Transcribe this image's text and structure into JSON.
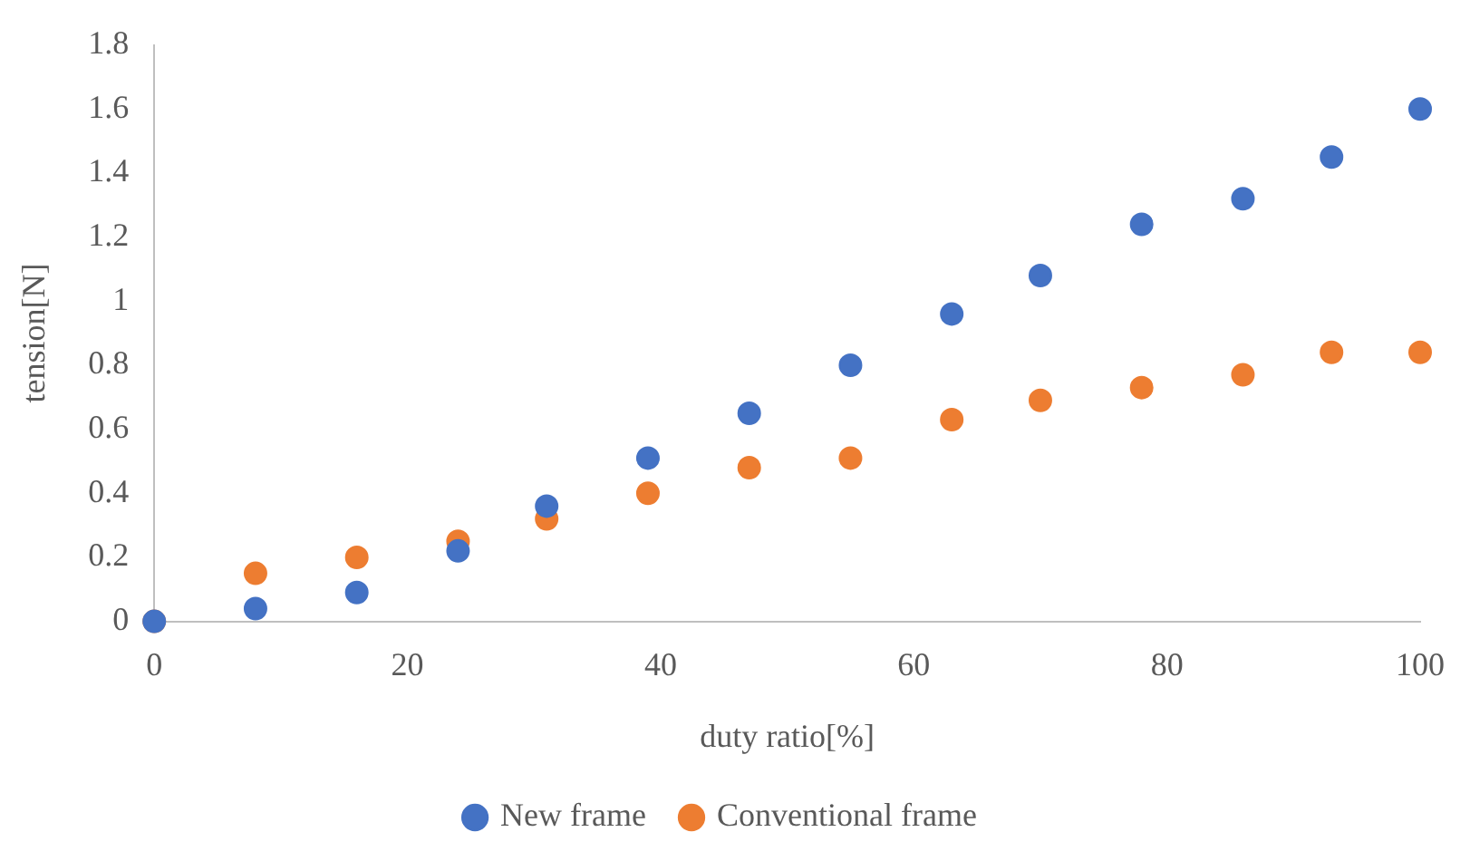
{
  "chart_data": {
    "type": "scatter",
    "xlabel": "duty ratio[%]",
    "ylabel": "tension[N]",
    "x": [
      0,
      8,
      16,
      24,
      31,
      39,
      47,
      55,
      63,
      70,
      78,
      86,
      93,
      100
    ],
    "series": [
      {
        "name": "New frame",
        "color": "#4472c4",
        "values": [
          0,
          0.04,
          0.09,
          0.22,
          0.36,
          0.51,
          0.65,
          0.8,
          0.96,
          1.08,
          1.24,
          1.32,
          1.45,
          1.6
        ]
      },
      {
        "name": "Conventional frame",
        "color": "#ed7d31",
        "values": [
          0,
          0.15,
          0.2,
          0.25,
          0.32,
          0.4,
          0.48,
          0.51,
          0.63,
          0.69,
          0.73,
          0.77,
          0.84,
          0.84
        ]
      }
    ],
    "xlim": [
      0,
      100
    ],
    "xticks": [
      0,
      20,
      40,
      60,
      80,
      100
    ],
    "ylim": [
      0,
      1.8
    ],
    "yticks": [
      0,
      0.2,
      0.4,
      0.6,
      0.8,
      1,
      1.2,
      1.4,
      1.6,
      1.8
    ],
    "grid": false,
    "legend": "bottom",
    "marker": "circle"
  }
}
